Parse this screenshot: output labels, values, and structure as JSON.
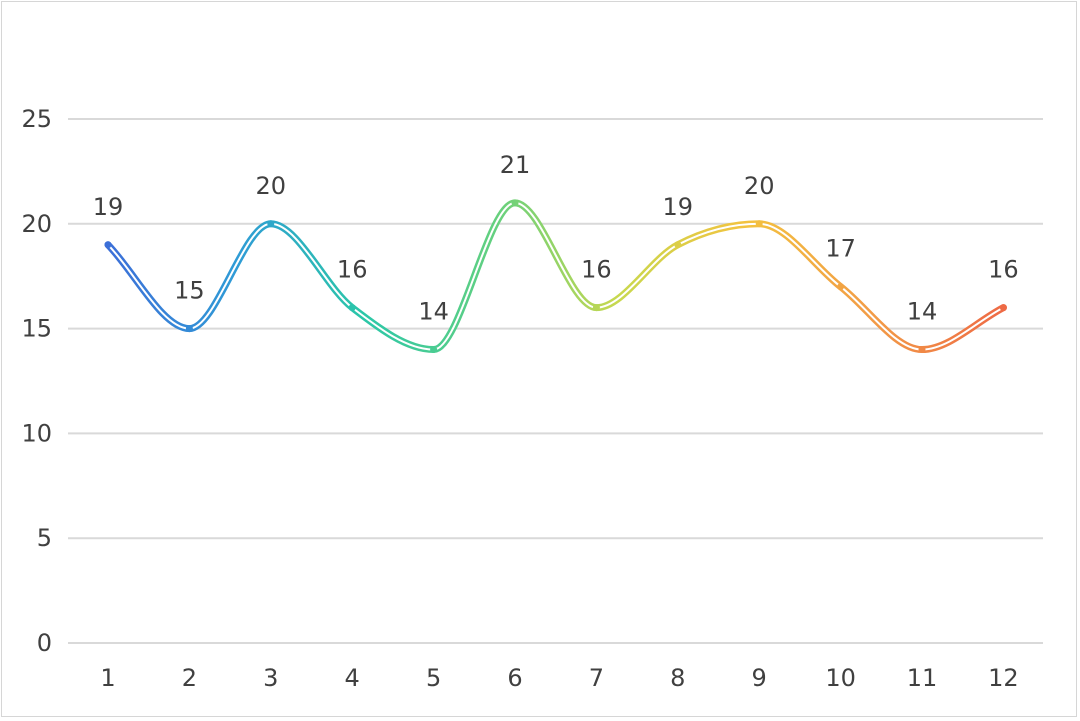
{
  "chart_data": {
    "type": "line",
    "title": "",
    "xlabel": "",
    "ylabel": "",
    "categories": [
      "1",
      "2",
      "3",
      "4",
      "5",
      "6",
      "7",
      "8",
      "9",
      "10",
      "11",
      "12"
    ],
    "series": [
      {
        "values": [
          19,
          15,
          20,
          16,
          14,
          21,
          16,
          19,
          20,
          17,
          14,
          16
        ]
      }
    ],
    "ylim": [
      0,
      25
    ],
    "yticks": [
      0,
      5,
      10,
      15,
      20,
      25
    ],
    "grid": true,
    "legend": "none",
    "smooth": true,
    "data_labels": true,
    "gradient_colors": [
      "#3c6fd8",
      "#2f9bd6",
      "#2bc7a8",
      "#62d080",
      "#c9d84e",
      "#f3c23f",
      "#f29a46",
      "#ee6a45"
    ],
    "line_style": "double"
  }
}
